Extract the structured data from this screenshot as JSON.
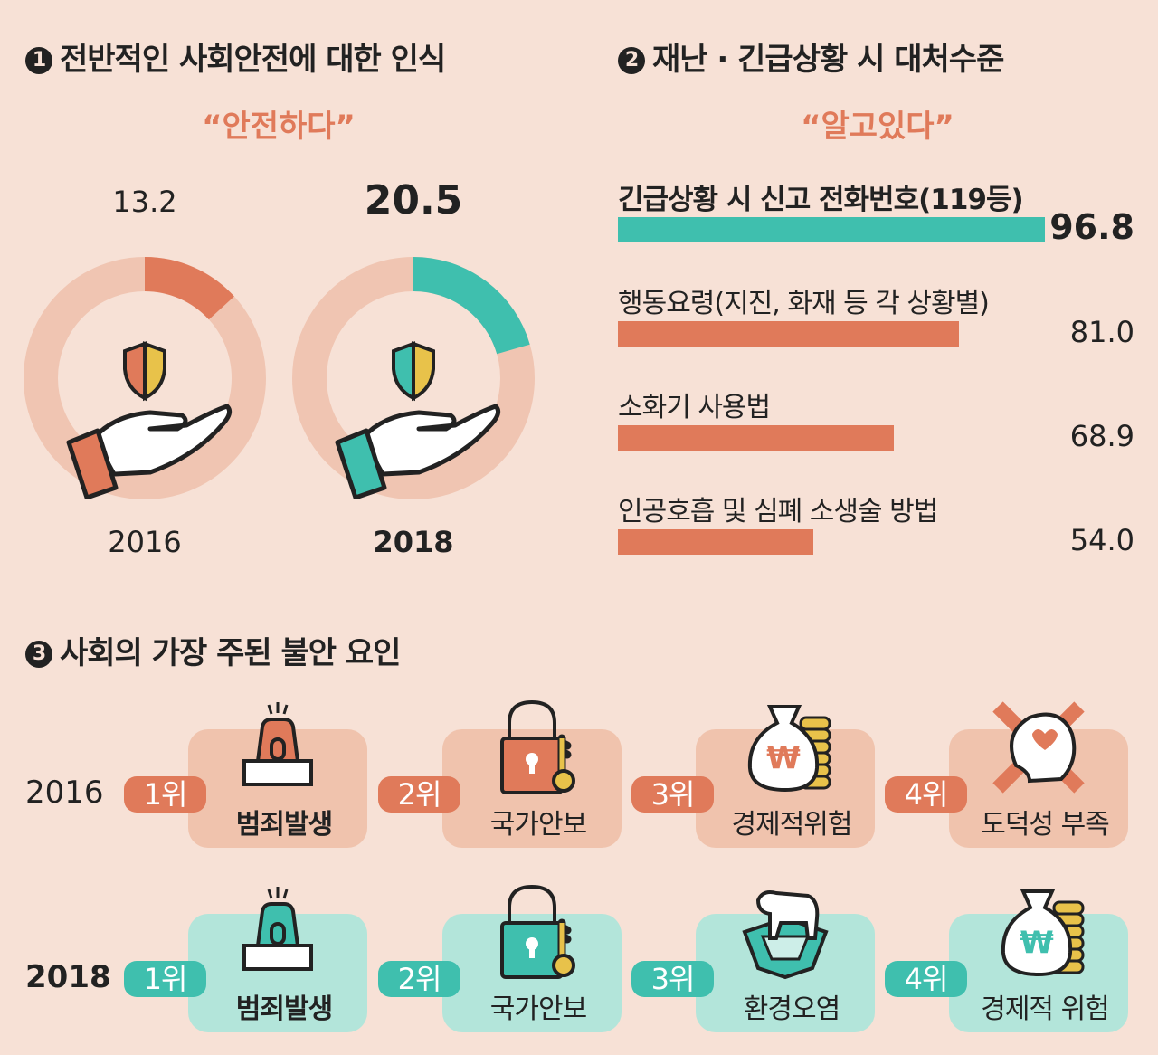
{
  "colors": {
    "background": "#f7e1d6",
    "orange": "#e07a5a",
    "teal": "#3fbfae",
    "donut_track": "#f0c5b2",
    "box_2016": "#f0c3ad",
    "box_2018": "#b3e5da",
    "key": "#e8c24a"
  },
  "section1": {
    "number": "1",
    "title": "전반적인 사회안전에 대한 인식",
    "subtitle": "“안전하다”"
  },
  "section2": {
    "number": "2",
    "title": "재난 · 긴급상황 시 대처수준",
    "subtitle": "“알고있다”"
  },
  "section3": {
    "number": "3",
    "title": "사회의 가장 주된 불안 요인"
  },
  "chart_data": [
    {
      "type": "pie",
      "title": "전반적인 사회안전에 대한 인식 “안전하다”",
      "unit": "%",
      "donuts": [
        {
          "year": "2016",
          "value": 13.2,
          "value_label": "13.2",
          "color": "#e07a5a",
          "icon": "shield-hand-icon"
        },
        {
          "year": "2018",
          "value": 20.5,
          "value_label": "20.5",
          "color": "#3fbfae",
          "icon": "shield-hand-icon"
        }
      ]
    },
    {
      "type": "bar",
      "orientation": "horizontal",
      "title": "재난 · 긴급상황 시 대처수준 “알고있다”",
      "unit": "%",
      "categories": [
        "긴급상황 시 신고 전화번호(119등)",
        "행동요령(지진, 화재 등 각 상황별)",
        "소화기 사용법",
        "인공호흡 및 심폐 소생술 방법"
      ],
      "values": [
        96.8,
        81.0,
        68.9,
        54.0
      ],
      "value_labels": [
        "96.8",
        "81.0",
        "68.9",
        "54.0"
      ],
      "colors": [
        "#3fbfae",
        "#e07a5a",
        "#e07a5a",
        "#e07a5a"
      ],
      "xlim": [
        18,
        96.8
      ]
    }
  ],
  "rankings": [
    {
      "year": "2016",
      "items": [
        {
          "rank": "1위",
          "label": "범죄발생",
          "bold": true,
          "icon": "siren"
        },
        {
          "rank": "2위",
          "label": "국가안보",
          "icon": "lock"
        },
        {
          "rank": "3위",
          "label": "경제적위험",
          "icon": "money"
        },
        {
          "rank": "4위",
          "label": "도덕성 부족",
          "icon": "head"
        }
      ]
    },
    {
      "year": "2018",
      "items": [
        {
          "rank": "1위",
          "label": "범죄발생",
          "bold": true,
          "icon": "siren"
        },
        {
          "rank": "2위",
          "label": "국가안보",
          "icon": "lock"
        },
        {
          "rank": "3위",
          "label": "환경오염",
          "icon": "polar-bear"
        },
        {
          "rank": "4위",
          "label": "경제적 위험",
          "icon": "money"
        }
      ]
    }
  ]
}
